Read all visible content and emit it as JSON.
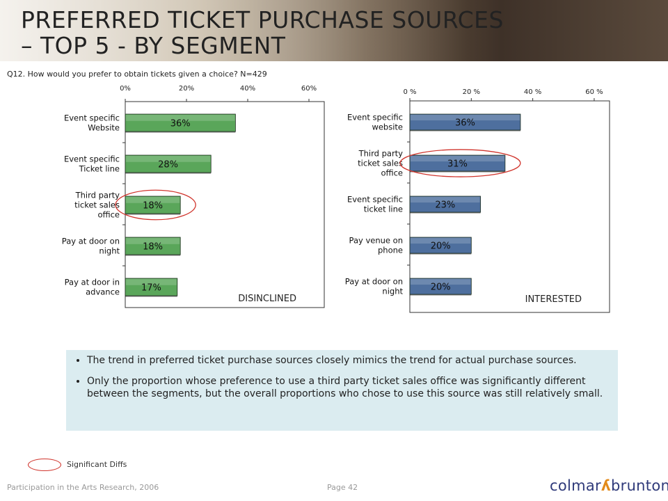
{
  "title": {
    "line1": "PREFERRED TICKET PURCHASE SOURCES",
    "line2": "– TOP 5 - BY SEGMENT"
  },
  "question": "Q12. How would you prefer to obtain tickets given a choice? N=429",
  "chart_data": [
    {
      "type": "bar",
      "orientation": "horizontal",
      "segment_label": "DISINCLINED",
      "categories": [
        [
          "Event specific",
          "Website"
        ],
        [
          "Event specific",
          "Ticket line"
        ],
        [
          "Third party",
          "ticket sales",
          "office"
        ],
        [
          "Pay at door on",
          "night"
        ],
        [
          "Pay at door in",
          "advance"
        ]
      ],
      "values": [
        36,
        28,
        18,
        18,
        17
      ],
      "data_labels": [
        "36%",
        "28%",
        "18%",
        "18%",
        "17%"
      ],
      "xlim": [
        0,
        65
      ],
      "xticks": [
        0,
        20,
        40,
        60
      ],
      "xtick_labels": [
        "0%",
        "20%",
        "40%",
        "60%"
      ],
      "bar_color": "#5aa65a",
      "highlight_index": 2
    },
    {
      "type": "bar",
      "orientation": "horizontal",
      "segment_label": "INTERESTED",
      "categories": [
        [
          "Event specific",
          "website"
        ],
        [
          "Third party",
          "ticket sales",
          "office"
        ],
        [
          "Event specific",
          "ticket line"
        ],
        [
          "Pay venue on",
          "phone"
        ],
        [
          "Pay at door on",
          "night"
        ]
      ],
      "values": [
        36,
        31,
        23,
        20,
        20
      ],
      "data_labels": [
        "36%",
        "31%",
        "23%",
        "20%",
        "20%"
      ],
      "xlim": [
        0,
        65
      ],
      "xticks": [
        0,
        20,
        40,
        60
      ],
      "xtick_labels": [
        "0 %",
        "20 %",
        "40 %",
        "60 %"
      ],
      "bar_color": "#4e6f9e",
      "highlight_index": 1
    }
  ],
  "bullets": [
    "The trend in preferred ticket purchase sources closely mimics the trend for actual purchase sources.",
    "Only the proportion whose preference to use a third party ticket sales office was significantly different between the segments, but the overall proportions who chose to use this source was still relatively small."
  ],
  "legend": {
    "label": "Significant Diffs",
    "color": "#d0342c"
  },
  "footer": {
    "left": "Participation in the Arts Research, 2006",
    "page": "Page 42"
  },
  "logo": {
    "text_left": "colmar",
    "text_right": "brunton",
    "mark_color": "#e38b1c",
    "text_color": "#2f3a7a"
  }
}
